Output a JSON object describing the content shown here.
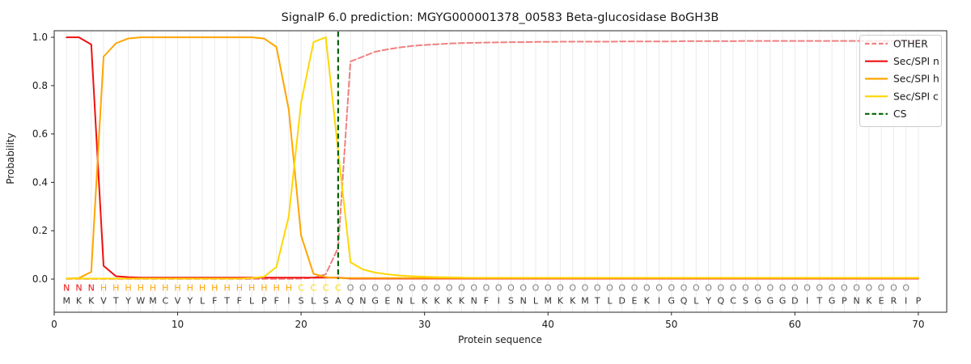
{
  "chart_data": {
    "type": "line",
    "title": "SignalP 6.0 prediction: MGYG000001378_00583 Beta-glucosidase BoGH3B",
    "xlabel": "Protein sequence",
    "ylabel": "Probability",
    "xlim": [
      0,
      72.3
    ],
    "ylim": [
      -0.137,
      1.027
    ],
    "x_ticks": [
      0,
      10,
      20,
      30,
      40,
      50,
      60,
      70
    ],
    "y_ticks": [
      "0.0",
      "0.2",
      "0.4",
      "0.6",
      "0.8",
      "1.0"
    ],
    "grid": {
      "vertical_per_residue": true,
      "color": "#ebebeb"
    },
    "x_range": [
      1,
      70
    ],
    "series": [
      {
        "name": "OTHER",
        "color": "#f08080",
        "style": "dashed",
        "values": [
          0.001,
          0.001,
          0.001,
          0.001,
          0.001,
          0.001,
          0.001,
          0.001,
          0.001,
          0.001,
          0.001,
          0.001,
          0.001,
          0.001,
          0.001,
          0.001,
          0.001,
          0.001,
          0.001,
          0.002,
          0.005,
          0.02,
          0.13,
          0.9,
          0.92,
          0.94,
          0.95,
          0.958,
          0.964,
          0.968,
          0.971,
          0.974,
          0.976,
          0.977,
          0.978,
          0.979,
          0.98,
          0.98,
          0.981,
          0.981,
          0.982,
          0.982,
          0.982,
          0.982,
          0.982,
          0.983,
          0.983,
          0.983,
          0.983,
          0.983,
          0.984,
          0.984,
          0.984,
          0.984,
          0.984,
          0.985,
          0.985,
          0.985,
          0.985,
          0.985,
          0.985,
          0.985,
          0.985,
          0.985,
          0.985,
          0.985,
          0.985,
          0.985,
          0.985,
          0.985
        ]
      },
      {
        "name": "Sec/SPI n",
        "color": "#ee1111",
        "style": "solid",
        "values": [
          1.0,
          1.0,
          0.97,
          0.055,
          0.012,
          0.008,
          0.006,
          0.006,
          0.006,
          0.006,
          0.006,
          0.006,
          0.006,
          0.006,
          0.006,
          0.006,
          0.006,
          0.006,
          0.006,
          0.006,
          0.006,
          0.006,
          0.006,
          0.002,
          0.002,
          0.002,
          0.002,
          0.002,
          0.002,
          0.002,
          0.002,
          0.002,
          0.002,
          0.002,
          0.002,
          0.002,
          0.002,
          0.002,
          0.002,
          0.002,
          0.002,
          0.002,
          0.002,
          0.002,
          0.002,
          0.002,
          0.002,
          0.002,
          0.002,
          0.002,
          0.002,
          0.002,
          0.002,
          0.002,
          0.002,
          0.002,
          0.002,
          0.002,
          0.002,
          0.002,
          0.002,
          0.002,
          0.002,
          0.002,
          0.002,
          0.002,
          0.002,
          0.002,
          0.002,
          0.002
        ]
      },
      {
        "name": "Sec/SPI h",
        "color": "#ffa500",
        "style": "solid",
        "values": [
          0.002,
          0.004,
          0.03,
          0.92,
          0.975,
          0.995,
          1.0,
          1.0,
          1.0,
          1.0,
          1.0,
          1.0,
          1.0,
          1.0,
          1.0,
          1.0,
          0.995,
          0.96,
          0.7,
          0.18,
          0.022,
          0.008,
          0.004,
          0.004,
          0.004,
          0.004,
          0.004,
          0.004,
          0.004,
          0.004,
          0.004,
          0.004,
          0.004,
          0.004,
          0.004,
          0.004,
          0.004,
          0.004,
          0.004,
          0.004,
          0.004,
          0.004,
          0.004,
          0.004,
          0.004,
          0.004,
          0.004,
          0.004,
          0.004,
          0.004,
          0.004,
          0.004,
          0.004,
          0.004,
          0.004,
          0.004,
          0.004,
          0.004,
          0.004,
          0.004,
          0.004,
          0.004,
          0.004,
          0.004,
          0.004,
          0.004,
          0.004,
          0.004,
          0.004,
          0.004
        ]
      },
      {
        "name": "Sec/SPI c",
        "color": "#ffd700",
        "style": "solid",
        "values": [
          0.002,
          0.002,
          0.002,
          0.002,
          0.002,
          0.002,
          0.002,
          0.002,
          0.002,
          0.002,
          0.002,
          0.002,
          0.002,
          0.002,
          0.002,
          0.004,
          0.01,
          0.05,
          0.26,
          0.73,
          0.98,
          1.0,
          0.53,
          0.07,
          0.04,
          0.027,
          0.02,
          0.015,
          0.012,
          0.01,
          0.008,
          0.007,
          0.006,
          0.005,
          0.005,
          0.005,
          0.005,
          0.005,
          0.005,
          0.005,
          0.005,
          0.005,
          0.005,
          0.005,
          0.005,
          0.005,
          0.005,
          0.005,
          0.005,
          0.005,
          0.005,
          0.005,
          0.005,
          0.005,
          0.005,
          0.005,
          0.005,
          0.005,
          0.005,
          0.005,
          0.005,
          0.005,
          0.005,
          0.005,
          0.005,
          0.005,
          0.005,
          0.005,
          0.005,
          0.005
        ]
      }
    ],
    "cs_line": {
      "label": "CS",
      "position": 23,
      "color": "#006400",
      "style": "dashed"
    },
    "legend": {
      "position": "upper right",
      "entries": [
        {
          "label": "OTHER",
          "color": "#f08080",
          "style": "dashed"
        },
        {
          "label": "Sec/SPI n",
          "color": "#ee1111",
          "style": "solid"
        },
        {
          "label": "Sec/SPI h",
          "color": "#ffa500",
          "style": "solid"
        },
        {
          "label": "Sec/SPI c",
          "color": "#ffd700",
          "style": "solid"
        },
        {
          "label": "CS",
          "color": "#006400",
          "style": "dashed"
        }
      ]
    },
    "annotations": {
      "region_labels": "NNNHHHHHHHHHHHHHHHHCCCCOOOOOOOOOOOOOOOOOOOOOOOOOOOOOOOOOOOOOOOOOOOOOO",
      "sequence": "MKKVTYWMCVYLFTFLPFISLSAQNGENLKKKKNFISNLMKKMTLDEKIGQLYQCSGGGDITGPNKERIP",
      "region_colors": {
        "N": "#ee1111",
        "H": "#ffa500",
        "C": "#ffd700",
        "O": "#808080"
      },
      "sequence_color": "#333333"
    }
  }
}
